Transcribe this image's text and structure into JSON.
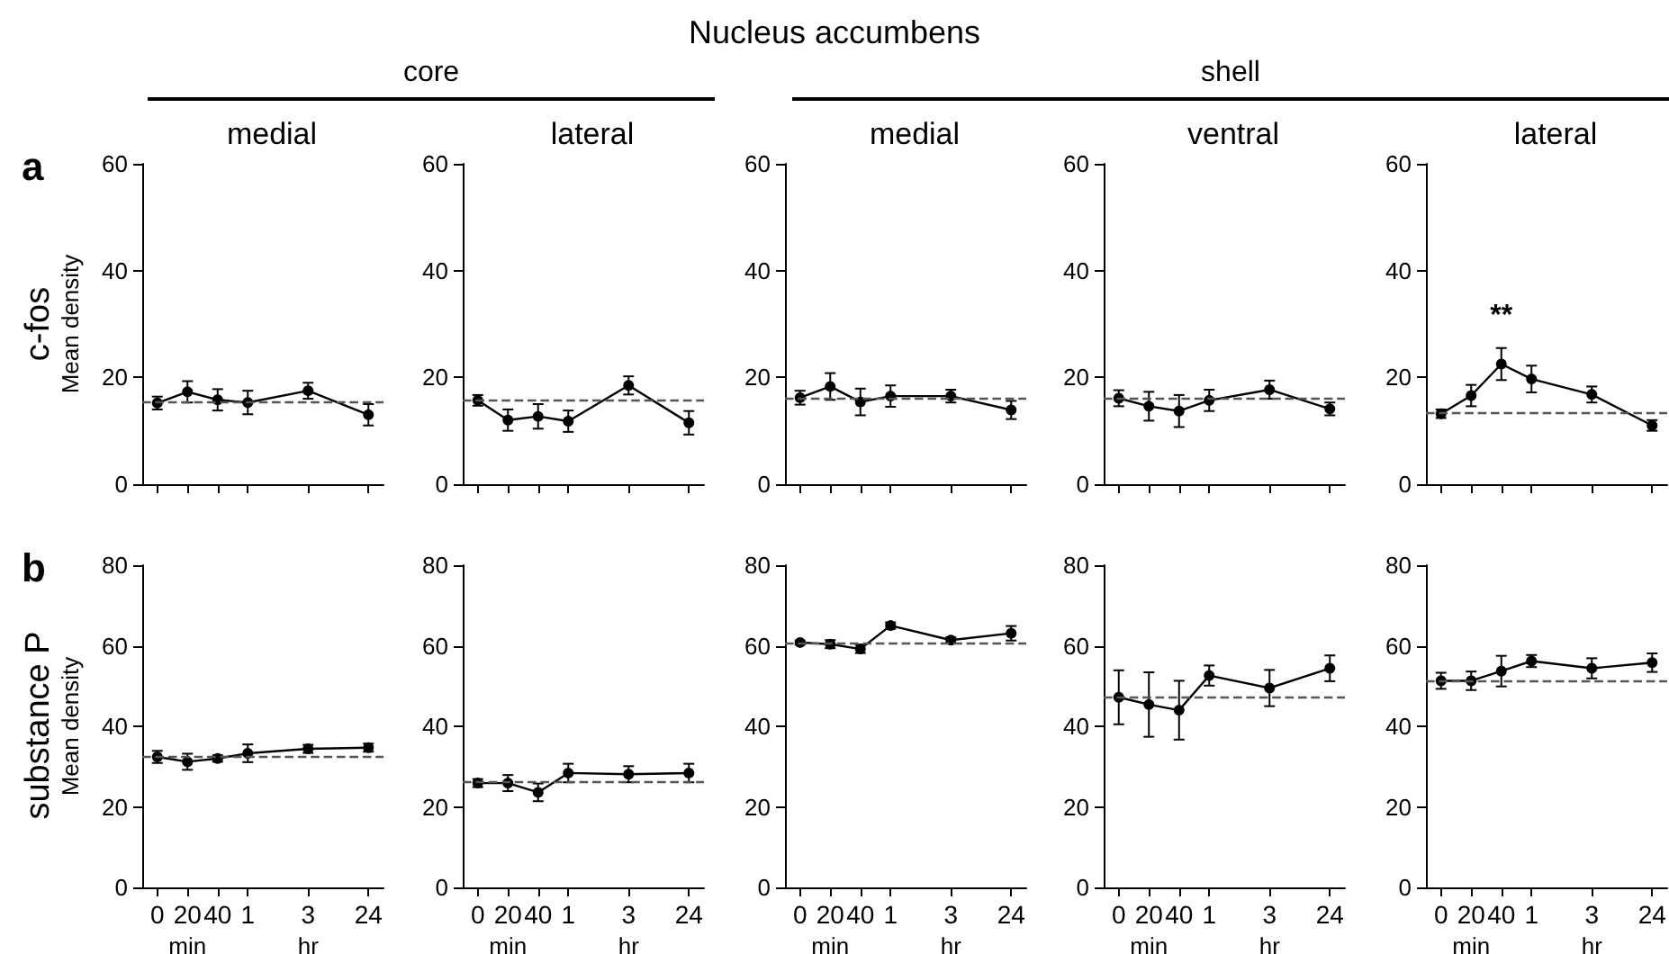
{
  "chart_data": [
    {
      "type": "line",
      "title": "medial",
      "ylabel": "Mean density",
      "annotations": [
        "Nucleus accumbens",
        "core",
        "a",
        "c-fos"
      ],
      "categories": [
        "0",
        "20",
        "40",
        "1",
        null,
        "3",
        null,
        "24"
      ],
      "values": [
        15.2,
        17.3,
        15.8,
        15.3,
        null,
        17.5,
        null,
        13
      ],
      "errors": [
        1.2,
        2,
        2,
        2.2,
        null,
        1.5,
        null,
        2
      ],
      "color": "#000000",
      "ylim": [
        0,
        60
      ],
      "yticks": [
        0,
        20,
        40,
        60
      ],
      "tick_labels": "y",
      "marker": "circle",
      "ref_lines": [
        {
          "axis": "y",
          "value": 15.5,
          "color": "#555555",
          "line_style": "dashed"
        }
      ]
    },
    {
      "type": "line",
      "title": "lateral",
      "categories": [
        "0",
        "20",
        "40",
        "1",
        null,
        "3",
        null,
        "24"
      ],
      "values": [
        15.7,
        12,
        12.7,
        11.8,
        null,
        18.5,
        null,
        11.5
      ],
      "errors": [
        1,
        2,
        2.3,
        2,
        null,
        1.7,
        null,
        2.2
      ],
      "color": "#000000",
      "ylim": [
        0,
        60
      ],
      "yticks": [
        0,
        20,
        40,
        60
      ],
      "tick_labels": "y",
      "marker": "circle",
      "ref_lines": [
        {
          "axis": "y",
          "value": 15.6,
          "color": "#555555",
          "line_style": "dashed"
        }
      ]
    },
    {
      "type": "line",
      "title": "medial",
      "annotations": [
        "shell"
      ],
      "categories": [
        "0",
        "20",
        "40",
        "1",
        null,
        "3",
        null,
        "24"
      ],
      "values": [
        16.2,
        18.3,
        15.4,
        16.5,
        null,
        16.5,
        null,
        13.9
      ],
      "errors": [
        1.3,
        2.5,
        2.5,
        2,
        null,
        1.2,
        null,
        1.7
      ],
      "color": "#000000",
      "ylim": [
        0,
        60
      ],
      "yticks": [
        0,
        20,
        40,
        60
      ],
      "tick_labels": "y",
      "marker": "circle",
      "ref_lines": [
        {
          "axis": "y",
          "value": 16.2,
          "color": "#555555",
          "line_style": "dashed"
        }
      ]
    },
    {
      "type": "line",
      "title": "ventral",
      "categories": [
        "0",
        "20",
        "40",
        "1",
        null,
        "3",
        null,
        "24"
      ],
      "values": [
        16.1,
        14.6,
        13.7,
        15.7,
        null,
        17.7,
        null,
        14.1
      ],
      "errors": [
        1.5,
        2.7,
        3,
        2,
        null,
        1.7,
        null,
        1.2
      ],
      "color": "#000000",
      "ylim": [
        0,
        60
      ],
      "yticks": [
        0,
        20,
        40,
        60
      ],
      "tick_labels": "y",
      "marker": "circle",
      "ref_lines": [
        {
          "axis": "y",
          "value": 16.2,
          "color": "#555555",
          "line_style": "dashed"
        }
      ]
    },
    {
      "type": "line",
      "title": "lateral",
      "annotations": [
        "**"
      ],
      "categories": [
        "0",
        "20",
        "40",
        "1",
        null,
        "3",
        null,
        "24"
      ],
      "values": [
        13.2,
        16.6,
        22.5,
        19.7,
        null,
        16.8,
        null,
        11
      ],
      "errors": [
        0.8,
        2,
        3,
        2.5,
        null,
        1.5,
        null,
        1
      ],
      "color": "#000000",
      "ylim": [
        0,
        60
      ],
      "yticks": [
        0,
        20,
        40,
        60
      ],
      "tick_labels": "y",
      "marker": "circle",
      "ref_lines": [
        {
          "axis": "y",
          "value": 13.5,
          "color": "#555555",
          "line_style": "dashed"
        }
      ]
    },
    {
      "type": "line",
      "ylabel": "Mean density",
      "annotations": [
        "b",
        "substance P",
        "min",
        "hr"
      ],
      "categories": [
        "0",
        "20",
        "40",
        "1",
        null,
        "3",
        null,
        "24"
      ],
      "values": [
        32.4,
        31.2,
        32,
        33.3,
        null,
        34.4,
        null,
        34.7
      ],
      "errors": [
        1.5,
        2,
        0.8,
        2.2,
        null,
        1,
        null,
        1
      ],
      "color": "#000000",
      "ylim": [
        0,
        80
      ],
      "yticks": [
        0,
        20,
        40,
        60,
        80
      ],
      "marker": "circle",
      "ref_lines": [
        {
          "axis": "y",
          "value": 32.7,
          "color": "#555555",
          "line_style": "dashed"
        }
      ]
    },
    {
      "type": "line",
      "annotations": [
        "min",
        "hr"
      ],
      "categories": [
        "0",
        "20",
        "40",
        "1",
        null,
        "3",
        null,
        "24"
      ],
      "values": [
        25.9,
        25.9,
        23.6,
        28.4,
        null,
        28.1,
        null,
        28.4
      ],
      "errors": [
        1,
        2,
        2.2,
        2.3,
        null,
        2,
        null,
        2.3
      ],
      "color": "#000000",
      "ylim": [
        0,
        80
      ],
      "yticks": [
        0,
        20,
        40,
        60,
        80
      ],
      "marker": "circle",
      "ref_lines": [
        {
          "axis": "y",
          "value": 26.2,
          "color": "#555555",
          "line_style": "dashed"
        }
      ]
    },
    {
      "type": "line",
      "annotations": [
        "min",
        "hr"
      ],
      "categories": [
        "0",
        "20",
        "40",
        "1",
        null,
        "3",
        null,
        "24"
      ],
      "values": [
        60.8,
        60.4,
        59.2,
        65,
        null,
        61.4,
        null,
        63.1
      ],
      "errors": [
        0.5,
        1,
        1,
        0.8,
        null,
        0.7,
        null,
        1.8
      ],
      "color": "#000000",
      "ylim": [
        0,
        80
      ],
      "yticks": [
        0,
        20,
        40,
        60,
        80
      ],
      "marker": "circle",
      "ref_lines": [
        {
          "axis": "y",
          "value": 60.7,
          "color": "#555555",
          "line_style": "dashed"
        }
      ]
    },
    {
      "type": "line",
      "annotations": [
        "min",
        "hr"
      ],
      "categories": [
        "0",
        "20",
        "40",
        "1",
        null,
        "3",
        null,
        "24"
      ],
      "values": [
        47.2,
        45.4,
        44,
        52.6,
        null,
        49.5,
        null,
        54.4
      ],
      "errors": [
        6.7,
        8,
        7.3,
        2.5,
        null,
        4.5,
        null,
        3.2
      ],
      "color": "#000000",
      "ylim": [
        0,
        80
      ],
      "yticks": [
        0,
        20,
        40,
        60,
        80
      ],
      "marker": "circle",
      "ref_lines": [
        {
          "axis": "y",
          "value": 47.1,
          "color": "#555555",
          "line_style": "dashed"
        }
      ]
    },
    {
      "type": "line",
      "annotations": [
        "min",
        "hr"
      ],
      "categories": [
        "0",
        "20",
        "40",
        "1",
        null,
        "3",
        null,
        "24"
      ],
      "values": [
        51.3,
        51.3,
        53.7,
        56.2,
        null,
        54.4,
        null,
        55.8
      ],
      "errors": [
        2,
        2.3,
        3.8,
        1.5,
        null,
        2.5,
        null,
        2.3
      ],
      "color": "#000000",
      "ylim": [
        0,
        80
      ],
      "yticks": [
        0,
        20,
        40,
        60,
        80
      ],
      "marker": "circle",
      "ref_lines": [
        {
          "axis": "y",
          "value": 51.3,
          "color": "#555555",
          "line_style": "dashed"
        }
      ]
    }
  ]
}
